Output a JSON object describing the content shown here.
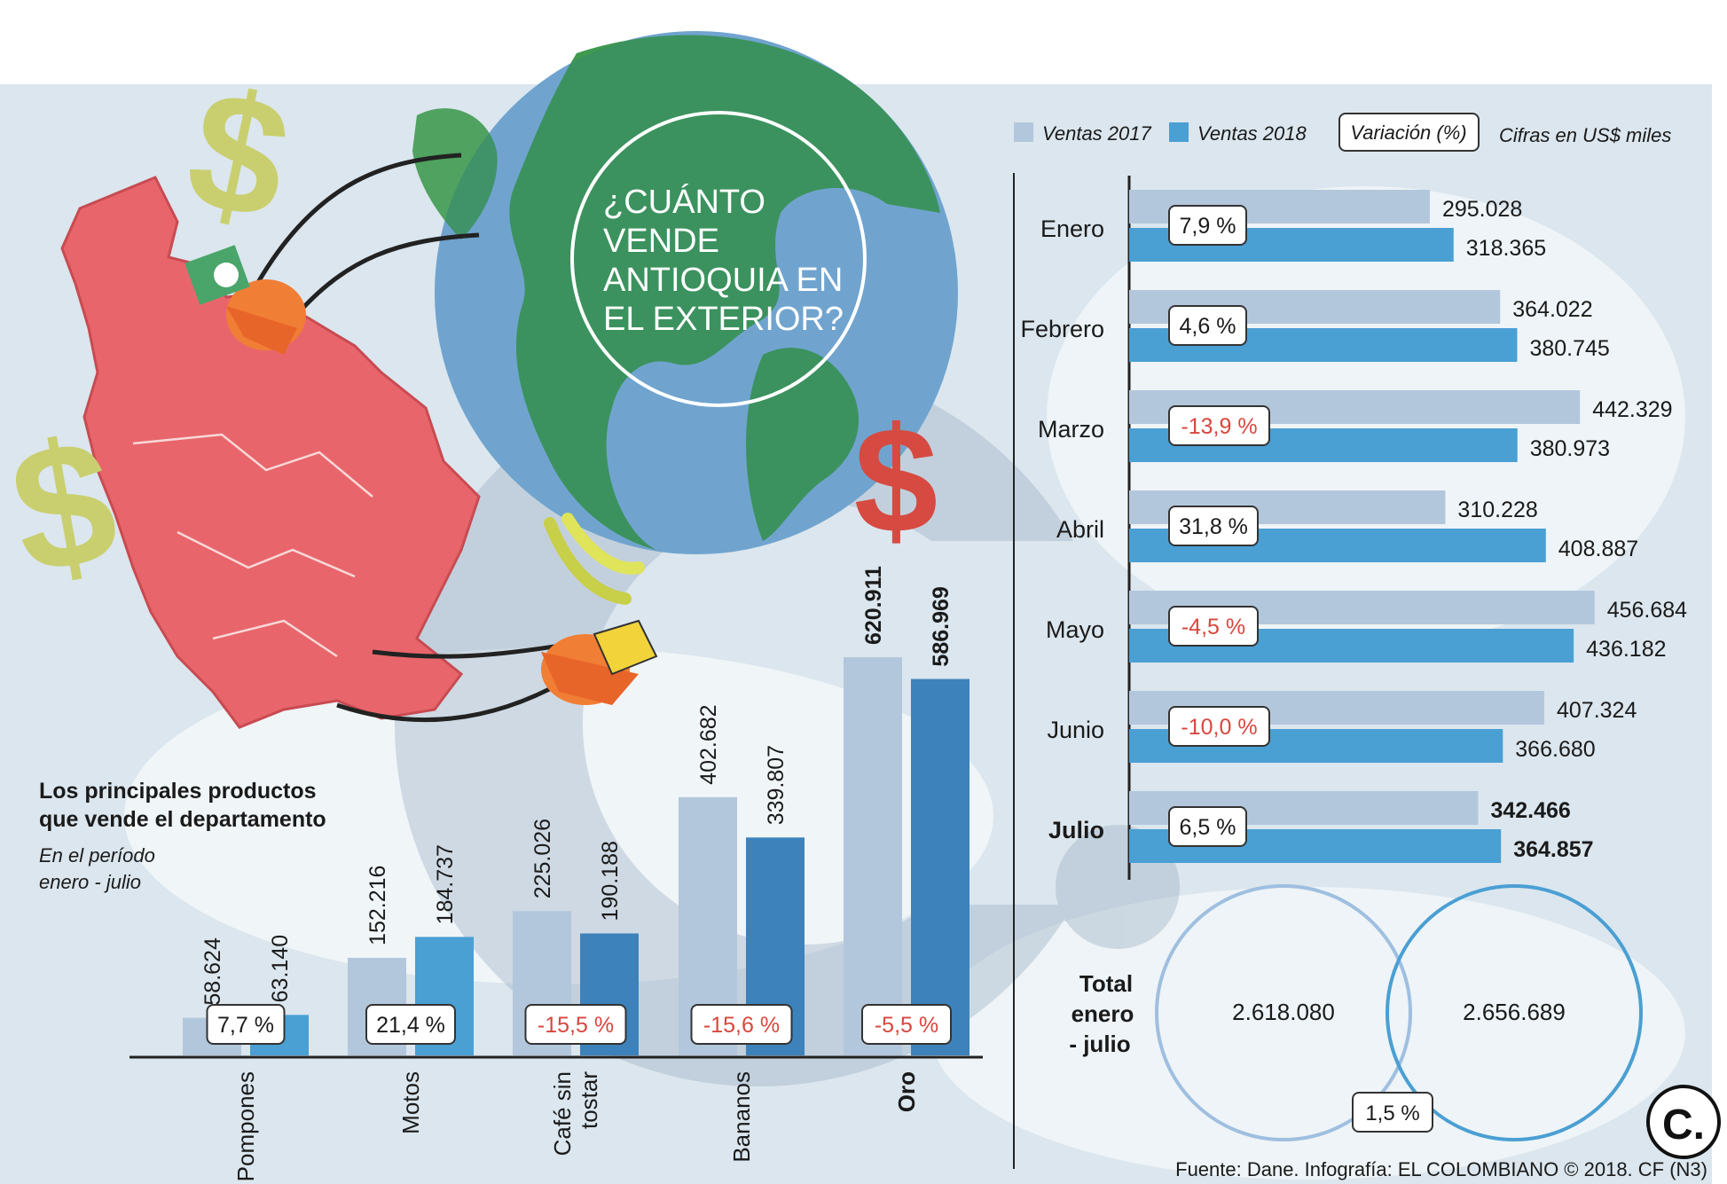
{
  "headline": "¿CUÁNTO VENDE ANTIOQUIA EN EL EXTERIOR?",
  "headline_lines": [
    "¿CUÁNTO",
    "VENDE",
    "ANTIOQUIA EN",
    "EL EXTERIOR?"
  ],
  "legend": {
    "ventas2017": "Ventas 2017",
    "ventas2018": "Ventas 2018",
    "variacion": "Variación (%)",
    "units": "Cifras en US$ miles"
  },
  "colors": {
    "ventas2017": "#b3c7dc",
    "ventas2018": "#4a9fd3",
    "ventas2018_dark": "#3d82bb",
    "negative_text": "#d8473e",
    "text": "#1a1a1a",
    "map_red": "#e8666b",
    "globe_green": "#3f9a4f",
    "dollar_olive": "#c9cf6e",
    "dollar_red": "#d64a41"
  },
  "products_title_lines": [
    "Los principales productos",
    "que vende el departamento"
  ],
  "products_subtitle_lines": [
    "En el período",
    "enero - julio"
  ],
  "monthly_total": {
    "label_lines": [
      "Total",
      "enero",
      "- julio"
    ],
    "value2017_label": "2.618.080",
    "value2018_label": "2.656.689",
    "variation_label": "1,5 %"
  },
  "source": "Fuente: Dane. Infografía: EL COLOMBIANO © 2018. CF (N3)",
  "logo_text": "C.",
  "icons": [
    "dollar-sign-icon",
    "globe-icon",
    "banana-icon",
    "flower-bouquet-icon",
    "gold-bar-icon",
    "hand-icon",
    "antioquia-map-icon"
  ],
  "chart_data": [
    {
      "type": "bar",
      "orientation": "horizontal",
      "categories": [
        "Enero",
        "Febrero",
        "Marzo",
        "Abril",
        "Mayo",
        "Junio",
        "Julio"
      ],
      "series": [
        {
          "name": "Ventas 2017",
          "values": [
            295028,
            364022,
            442329,
            310228,
            456684,
            407324,
            342466
          ],
          "labels": [
            "295.028",
            "364.022",
            "442.329",
            "310.228",
            "456.684",
            "407.324",
            "342.466"
          ]
        },
        {
          "name": "Ventas 2018",
          "values": [
            318365,
            380745,
            380973,
            408887,
            436182,
            366680,
            364857
          ],
          "labels": [
            "318.365",
            "380.745",
            "380.973",
            "408.887",
            "436.182",
            "366.680",
            "364.857"
          ]
        }
      ],
      "variation": [
        7.9,
        4.6,
        -13.9,
        31.8,
        -4.5,
        -10.0,
        6.5
      ],
      "variation_labels": [
        "7,9 %",
        "4,6 %",
        "-13,9 %",
        "31,8 %",
        "-4,5 %",
        "-10,0 %",
        "6,5 %"
      ],
      "highlight_category": "Julio",
      "xlim": [
        0,
        470000
      ],
      "legend_position": "top",
      "grid": false
    },
    {
      "type": "bar",
      "orientation": "vertical",
      "categories": [
        "Pompones",
        "Motos",
        "Café sin tostar",
        "Bananos",
        "Oro"
      ],
      "category_label_lines": [
        [
          "Pompones"
        ],
        [
          "Motos"
        ],
        [
          "Café sin",
          "tostar"
        ],
        [
          "Bananos"
        ],
        [
          "Oro"
        ]
      ],
      "series": [
        {
          "name": "Ventas 2017",
          "values": [
            58624,
            152216,
            225026,
            402682,
            620911
          ],
          "labels": [
            "58.624",
            "152.216",
            "225.026",
            "402.682",
            "620.911"
          ]
        },
        {
          "name": "Ventas 2018",
          "values": [
            63140,
            184737,
            190188,
            339807,
            586969
          ],
          "labels": [
            "63.140",
            "184.737",
            "190.188",
            "339.807",
            "586.969"
          ]
        }
      ],
      "variation": [
        7.7,
        21.4,
        -15.5,
        -15.6,
        -5.5
      ],
      "variation_labels": [
        "7,7 %",
        "21,4 %",
        "-15,5 %",
        "-15,6 %",
        "-5,5 %"
      ],
      "highlight_category": "Oro",
      "ylim": [
        0,
        650000
      ],
      "grid": false
    }
  ]
}
